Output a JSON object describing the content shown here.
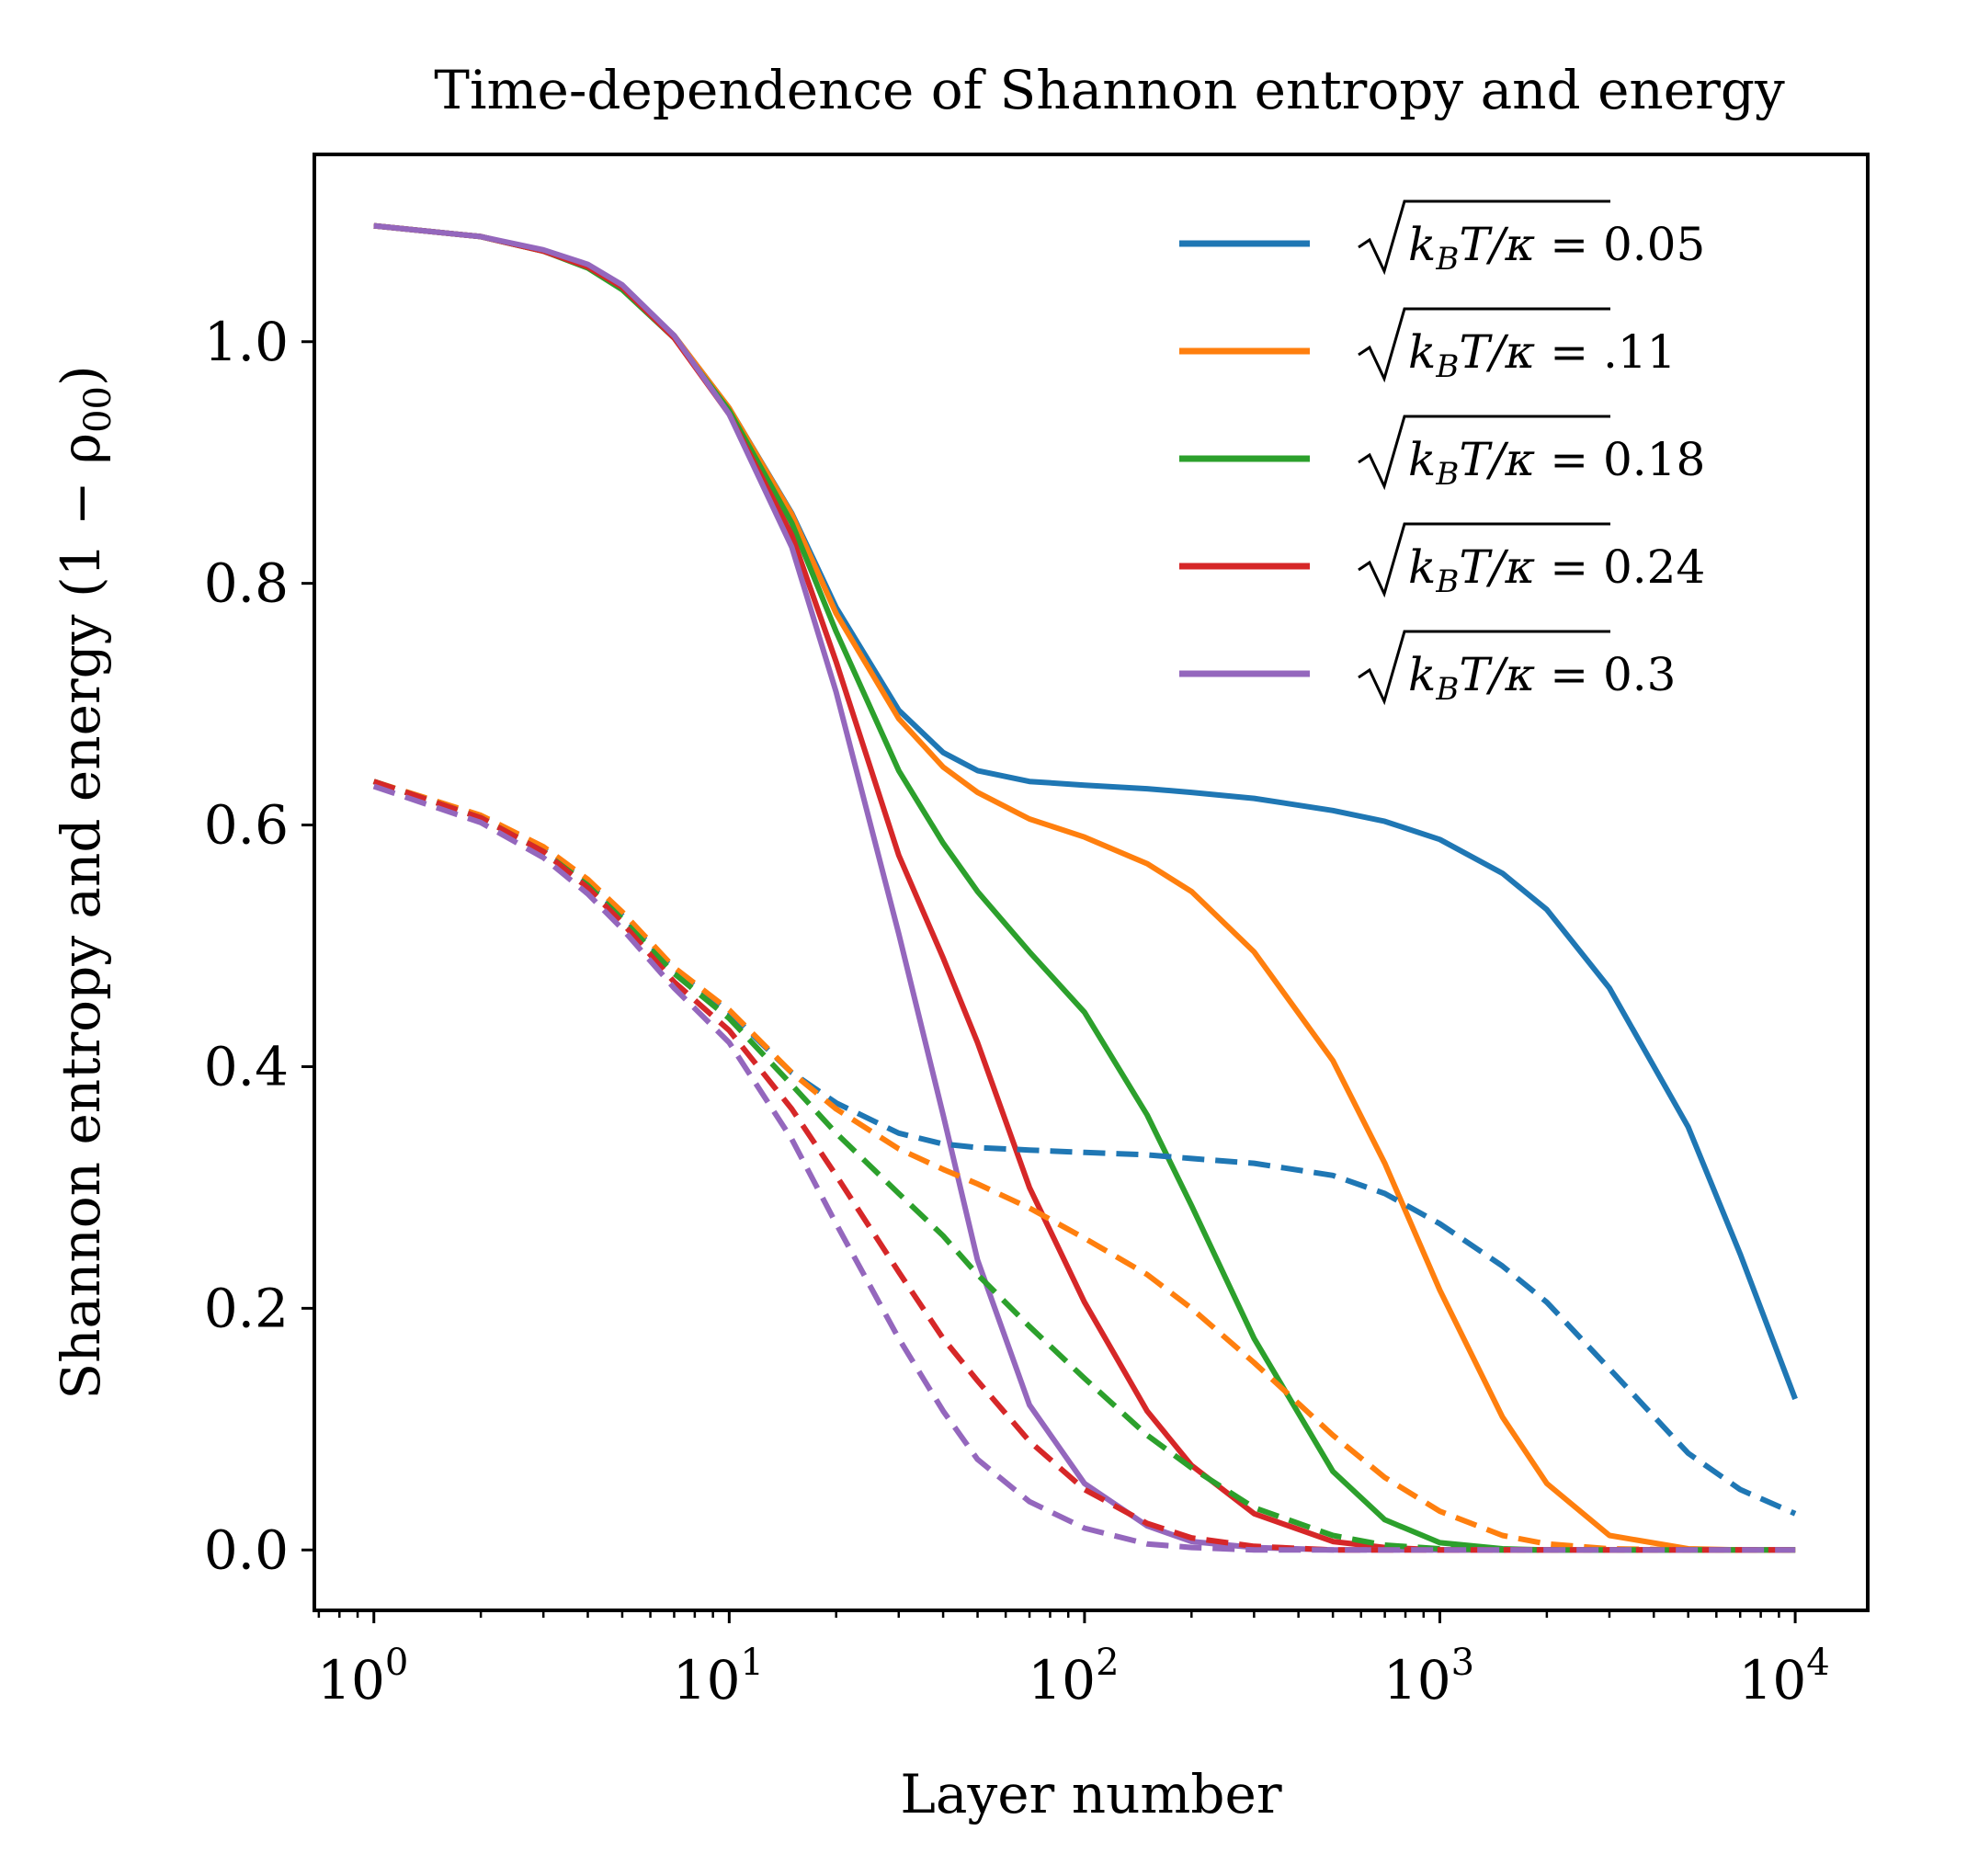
{
  "chart_data": {
    "type": "line",
    "title": "Time-dependence of Shannon entropy and energy",
    "xlabel": "Layer number",
    "ylabel": "Shannon entropy and energy (1 − ρ",
    "ylabel_sub": "00",
    "ylabel_close": ")",
    "xscale": "log",
    "xlim": [
      0.68,
      16000
    ],
    "ylim": [
      -0.05,
      1.155
    ],
    "grid": false,
    "legend_position": "top-right",
    "x_ticks": [
      {
        "base": "10",
        "exp": "0",
        "value": 1
      },
      {
        "base": "10",
        "exp": "1",
        "value": 10
      },
      {
        "base": "10",
        "exp": "2",
        "value": 100
      },
      {
        "base": "10",
        "exp": "3",
        "value": 1000
      },
      {
        "base": "10",
        "exp": "4",
        "value": 10000
      }
    ],
    "y_ticks": [
      {
        "label": "0.0",
        "value": 0.0
      },
      {
        "label": "0.2",
        "value": 0.2
      },
      {
        "label": "0.4",
        "value": 0.4
      },
      {
        "label": "0.6",
        "value": 0.6
      },
      {
        "label": "0.8",
        "value": 0.8
      },
      {
        "label": "1.0",
        "value": 1.0
      }
    ],
    "x": [
      1,
      2,
      3,
      4,
      5,
      7,
      10,
      15,
      20,
      30,
      40,
      50,
      70,
      100,
      150,
      200,
      300,
      500,
      700,
      1000,
      1500,
      2000,
      3000,
      5000,
      7000,
      10000
    ],
    "series": [
      {
        "name": "entropy-0.05",
        "legend_lhs": "√k_BT/κ",
        "legend_base": "k",
        "legend_sub": "B",
        "legend_rest": "T/κ",
        "legend_value": "= 0.05",
        "color": "#1f77b4",
        "style": "solid",
        "values": [
          1.096,
          1.087,
          1.075,
          1.062,
          1.045,
          1.005,
          0.945,
          0.858,
          0.78,
          0.695,
          0.66,
          0.645,
          0.636,
          0.633,
          0.63,
          0.627,
          0.622,
          0.612,
          0.603,
          0.588,
          0.56,
          0.53,
          0.465,
          0.35,
          0.245,
          0.125
        ]
      },
      {
        "name": "entropy-0.11",
        "legend_lhs": "√k_BT/κ",
        "legend_base": "k",
        "legend_sub": "B",
        "legend_rest": "T/κ",
        "legend_value": "= .11",
        "color": "#ff7f0e",
        "style": "solid",
        "values": [
          1.096,
          1.087,
          1.075,
          1.062,
          1.045,
          1.005,
          0.945,
          0.857,
          0.775,
          0.688,
          0.648,
          0.627,
          0.605,
          0.59,
          0.568,
          0.545,
          0.495,
          0.405,
          0.32,
          0.215,
          0.11,
          0.055,
          0.012,
          0.001,
          0.0,
          0.0
        ]
      },
      {
        "name": "entropy-0.18",
        "legend_lhs": "√k_BT/κ",
        "legend_base": "k",
        "legend_sub": "B",
        "legend_rest": "T/κ",
        "legend_value": "= 0.18",
        "color": "#2ca02c",
        "style": "solid",
        "values": [
          1.096,
          1.087,
          1.075,
          1.061,
          1.043,
          1.003,
          0.943,
          0.85,
          0.76,
          0.645,
          0.585,
          0.545,
          0.495,
          0.445,
          0.36,
          0.285,
          0.175,
          0.065,
          0.025,
          0.006,
          0.001,
          0.0,
          0.0,
          0.0,
          0.0,
          0.0
        ]
      },
      {
        "name": "entropy-0.24",
        "legend_lhs": "√k_BT/κ",
        "legend_base": "k",
        "legend_sub": "B",
        "legend_rest": "T/κ",
        "legend_value": "= 0.24",
        "color": "#d62728",
        "style": "solid",
        "values": [
          1.096,
          1.087,
          1.075,
          1.062,
          1.045,
          1.003,
          0.94,
          0.84,
          0.735,
          0.575,
          0.49,
          0.42,
          0.3,
          0.205,
          0.115,
          0.07,
          0.03,
          0.007,
          0.002,
          0.0,
          0.0,
          0.0,
          0.0,
          0.0,
          0.0,
          0.0
        ]
      },
      {
        "name": "entropy-0.3",
        "legend_lhs": "√k_BT/κ",
        "legend_base": "k",
        "legend_sub": "B",
        "legend_rest": "T/κ",
        "legend_value": "= 0.3",
        "color": "#9467bd",
        "style": "solid",
        "values": [
          1.096,
          1.087,
          1.076,
          1.064,
          1.047,
          1.005,
          0.94,
          0.83,
          0.71,
          0.51,
          0.36,
          0.24,
          0.12,
          0.055,
          0.02,
          0.007,
          0.002,
          0.0,
          0.0,
          0.0,
          0.0,
          0.0,
          0.0,
          0.0,
          0.0,
          0.0
        ]
      },
      {
        "name": "energy-0.05",
        "color": "#1f77b4",
        "style": "dashed",
        "values": [
          0.636,
          0.607,
          0.58,
          0.552,
          0.525,
          0.48,
          0.445,
          0.395,
          0.37,
          0.345,
          0.336,
          0.333,
          0.331,
          0.329,
          0.327,
          0.324,
          0.32,
          0.31,
          0.295,
          0.27,
          0.235,
          0.205,
          0.15,
          0.08,
          0.05,
          0.03
        ]
      },
      {
        "name": "energy-0.11",
        "color": "#ff7f0e",
        "style": "dashed",
        "values": [
          0.636,
          0.608,
          0.582,
          0.555,
          0.528,
          0.482,
          0.447,
          0.395,
          0.365,
          0.332,
          0.315,
          0.303,
          0.283,
          0.258,
          0.228,
          0.2,
          0.155,
          0.095,
          0.06,
          0.032,
          0.012,
          0.005,
          0.001,
          0.0,
          0.0,
          0.0
        ]
      },
      {
        "name": "energy-0.18",
        "color": "#2ca02c",
        "style": "dashed",
        "values": [
          0.636,
          0.606,
          0.578,
          0.55,
          0.522,
          0.477,
          0.44,
          0.385,
          0.345,
          0.295,
          0.26,
          0.228,
          0.185,
          0.142,
          0.095,
          0.068,
          0.035,
          0.012,
          0.004,
          0.001,
          0.0,
          0.0,
          0.0,
          0.0,
          0.0,
          0.0
        ]
      },
      {
        "name": "energy-0.24",
        "color": "#d62728",
        "style": "dashed",
        "values": [
          0.636,
          0.606,
          0.578,
          0.548,
          0.519,
          0.47,
          0.43,
          0.365,
          0.31,
          0.23,
          0.175,
          0.14,
          0.09,
          0.05,
          0.022,
          0.01,
          0.003,
          0.0,
          0.0,
          0.0,
          0.0,
          0.0,
          0.0,
          0.0,
          0.0,
          0.0
        ]
      },
      {
        "name": "energy-0.3",
        "color": "#9467bd",
        "style": "dashed",
        "values": [
          0.632,
          0.602,
          0.573,
          0.543,
          0.514,
          0.465,
          0.42,
          0.34,
          0.27,
          0.175,
          0.115,
          0.075,
          0.04,
          0.018,
          0.005,
          0.002,
          0.0,
          0.0,
          0.0,
          0.0,
          0.0,
          0.0,
          0.0,
          0.0,
          0.0,
          0.0
        ]
      }
    ]
  }
}
